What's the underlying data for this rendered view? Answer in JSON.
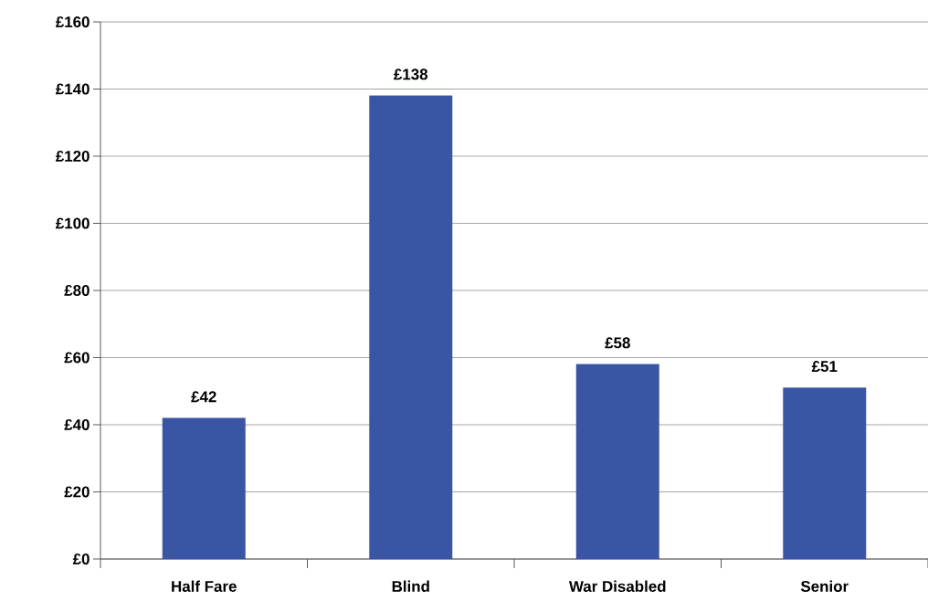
{
  "chart_data": {
    "type": "bar",
    "categories": [
      "Half Fare",
      "Blind",
      "War Disabled",
      "Senior"
    ],
    "values": [
      42,
      138,
      58,
      51
    ],
    "value_labels": [
      "£42",
      "£138",
      "£58",
      "£51"
    ],
    "color": "#3a55a3",
    "ylim": [
      0,
      160
    ],
    "yticks": [
      {
        "value": 0,
        "label": "£0"
      },
      {
        "value": 20,
        "label": "£20"
      },
      {
        "value": 40,
        "label": "£40"
      },
      {
        "value": 60,
        "label": "£60"
      },
      {
        "value": 80,
        "label": "£80"
      },
      {
        "value": 100,
        "label": "£100"
      },
      {
        "value": 120,
        "label": "£120"
      },
      {
        "value": 140,
        "label": "£140"
      },
      {
        "value": 160,
        "label": "£160"
      }
    ],
    "grid": "y"
  }
}
